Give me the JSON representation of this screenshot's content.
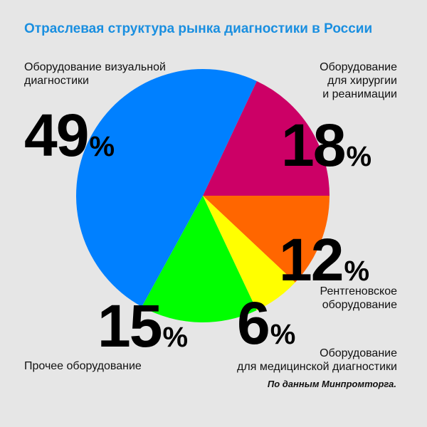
{
  "title": "Отраслевая структура рынка диагностики в России",
  "source": "По данным Минпромторга.",
  "chart_data": {
    "type": "pie",
    "title": "Отраслевая структура рынка диагностики в России",
    "unit": "%",
    "slices": [
      {
        "label_lines": [
          "Оборудование визуальной",
          "диагностики"
        ],
        "value": 49,
        "color": "#0080ff"
      },
      {
        "label_lines": [
          "Оборудование",
          "для хирургии",
          "и реанимации"
        ],
        "value": 18,
        "color": "#cc0066"
      },
      {
        "label_lines": [
          "Рентгеновское",
          "оборудование"
        ],
        "value": 12,
        "color": "#ff6600"
      },
      {
        "label_lines": [
          "Оборудование",
          "для медицинской диагностики"
        ],
        "value": 6,
        "color": "#ffff00"
      },
      {
        "label_lines": [
          "Прочее оборудование"
        ],
        "value": 15,
        "color": "#00ff00"
      }
    ]
  }
}
